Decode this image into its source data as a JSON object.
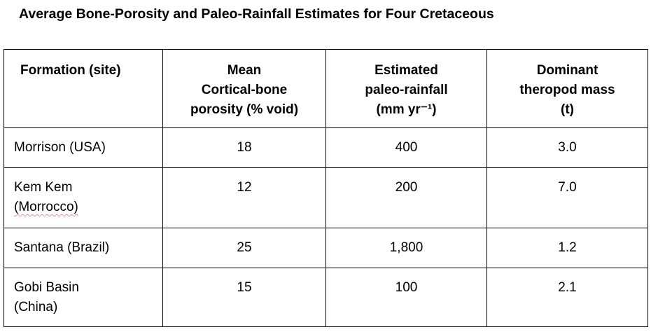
{
  "title": "Average Bone-Porosity and Paleo-Rainfall Estimates for Four Cretaceous",
  "table": {
    "header": [
      [
        "Formation (site)"
      ],
      [
        "Mean",
        "Cortical-bone",
        "porosity (% void)"
      ],
      [
        "Estimated",
        "paleo-rainfall",
        "(mm yr⁻¹)"
      ],
      [
        "Dominant",
        "theropod mass",
        "(t)"
      ]
    ],
    "rows": [
      [
        [
          "Morrison (USA)"
        ],
        "18",
        "400",
        "3.0"
      ],
      [
        [
          "Kem Kem",
          "(Morrocco)"
        ],
        "12",
        "200",
        "7.0"
      ],
      [
        [
          "Santana (Brazil)"
        ],
        "25",
        "1,800",
        "1.2"
      ],
      [
        [
          "Gobi Basin",
          "(China)"
        ],
        "15",
        "100",
        "2.1"
      ]
    ]
  }
}
